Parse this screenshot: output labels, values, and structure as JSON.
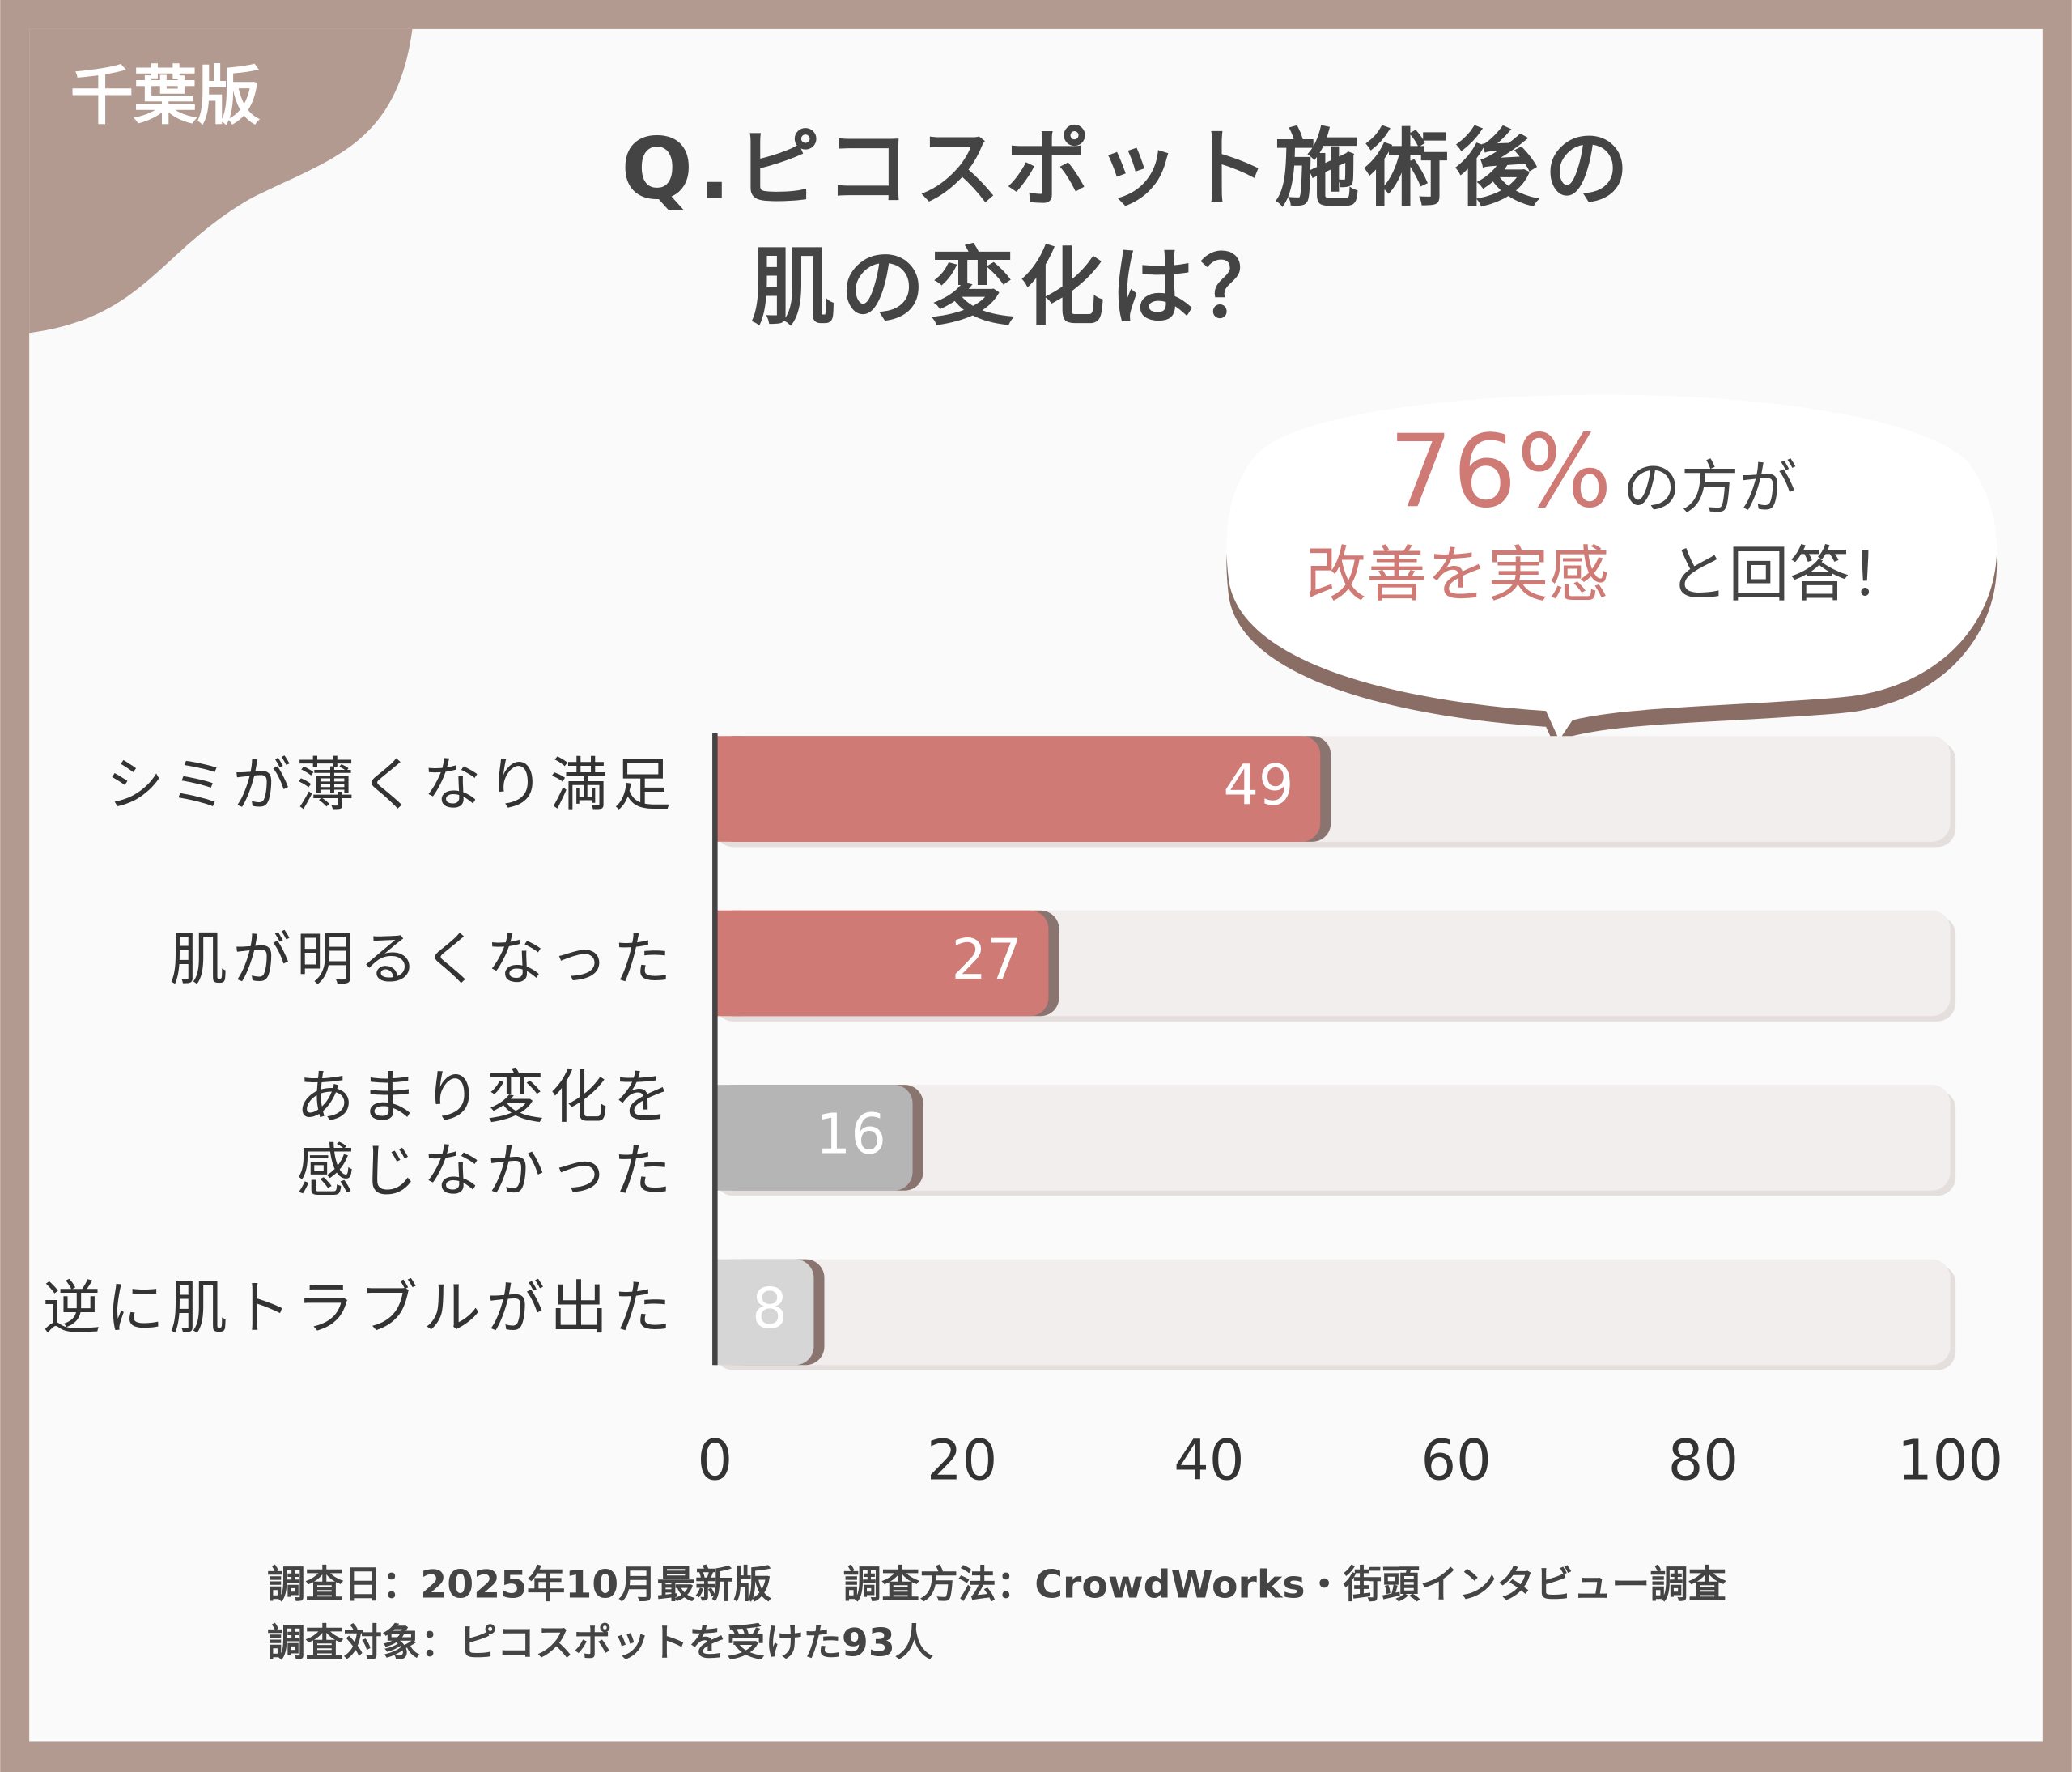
{
  "badge": "千葉版",
  "chart_data": {
    "type": "hbar",
    "title": [
      "Q.ピコスポット施術後の",
      "肌の変化は？"
    ],
    "categories": [
      "シミが薄くなり満足",
      "肌が明るくなった",
      "あまり変化を\n感じなかった",
      "逆に肌トラブルが出た"
    ],
    "values": [
      49,
      27,
      16,
      8
    ],
    "colors": [
      "#d07a76",
      "#d07a76",
      "#b5b5b5",
      "#d6d6d6"
    ],
    "xlim": [
      0,
      100
    ],
    "xticks": [
      0,
      20,
      40,
      60,
      80,
      100
    ],
    "annotation": {
      "line1": [
        "76%",
        "の方が"
      ],
      "line2": [
        "改善を実感",
        "と回答！"
      ]
    }
  },
  "footer": [
    "調査日：2025年10月最新版",
    "調査方法：CrowdWorks・街頭インタビュー調査",
    "調査対象：ピコスポットを受けた93人"
  ]
}
